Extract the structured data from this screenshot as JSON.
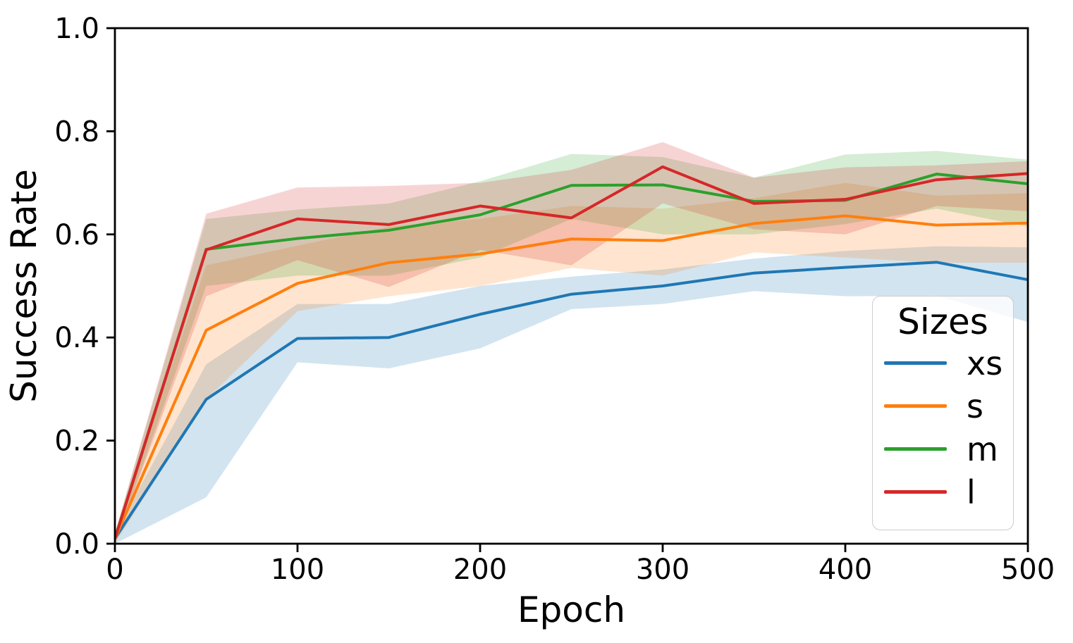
{
  "figure": {
    "background_color": "#ffffff",
    "axis_color": "#000000"
  },
  "legend": {
    "title": "Sizes",
    "position": "lower right",
    "border_color": "#cccccc"
  },
  "chart_data": {
    "type": "line",
    "title": "",
    "xlabel": "Epoch",
    "ylabel": "Success Rate",
    "xlim": [
      0,
      500
    ],
    "ylim": [
      0.0,
      1.0
    ],
    "xtick_labels": [
      "0",
      "100",
      "200",
      "300",
      "400",
      "500"
    ],
    "xtick_values": [
      0,
      100,
      200,
      300,
      400,
      500
    ],
    "ytick_labels": [
      "0.0",
      "0.2",
      "0.4",
      "0.6",
      "0.8",
      "1.0"
    ],
    "ytick_values": [
      0.0,
      0.2,
      0.4,
      0.6,
      0.8,
      1.0
    ],
    "grid": false,
    "legend_title": "Sizes",
    "legend_position": "lower right",
    "band_alpha": 0.2,
    "x": [
      0,
      50,
      100,
      150,
      200,
      250,
      300,
      350,
      400,
      450,
      500
    ],
    "series": [
      {
        "name": "xs",
        "color": "#1f77b4",
        "values": [
          0.01,
          0.28,
          0.398,
          0.4,
          0.445,
          0.484,
          0.5,
          0.525,
          0.536,
          0.546,
          0.512
        ],
        "band_lower": [
          0.0,
          0.09,
          0.352,
          0.34,
          0.379,
          0.455,
          0.465,
          0.49,
          0.48,
          0.481,
          0.43
        ],
        "band_upper": [
          0.02,
          0.348,
          0.465,
          0.465,
          0.5,
          0.518,
          0.532,
          0.553,
          0.568,
          0.577,
          0.575
        ]
      },
      {
        "name": "s",
        "color": "#ff7f0e",
        "values": [
          0.01,
          0.414,
          0.505,
          0.545,
          0.562,
          0.591,
          0.588,
          0.621,
          0.636,
          0.618,
          0.622
        ],
        "band_lower": [
          0.0,
          0.28,
          0.451,
          0.48,
          0.5,
          0.535,
          0.52,
          0.565,
          0.555,
          0.545,
          0.545
        ],
        "band_upper": [
          0.02,
          0.54,
          0.578,
          0.615,
          0.63,
          0.655,
          0.65,
          0.67,
          0.7,
          0.675,
          0.68
        ]
      },
      {
        "name": "m",
        "color": "#2ca02c",
        "values": [
          0.01,
          0.571,
          0.592,
          0.608,
          0.638,
          0.695,
          0.696,
          0.664,
          0.666,
          0.717,
          0.698
        ],
        "band_lower": [
          0.0,
          0.5,
          0.52,
          0.52,
          0.555,
          0.63,
          0.6,
          0.6,
          0.62,
          0.65,
          0.615
        ],
        "band_upper": [
          0.02,
          0.63,
          0.648,
          0.66,
          0.703,
          0.756,
          0.75,
          0.71,
          0.755,
          0.762,
          0.745
        ]
      },
      {
        "name": "l",
        "color": "#d62728",
        "values": [
          0.01,
          0.57,
          0.63,
          0.619,
          0.655,
          0.632,
          0.731,
          0.66,
          0.668,
          0.706,
          0.718
        ],
        "band_lower": [
          0.0,
          0.48,
          0.55,
          0.498,
          0.57,
          0.54,
          0.66,
          0.61,
          0.6,
          0.655,
          0.645
        ],
        "band_upper": [
          0.02,
          0.64,
          0.691,
          0.694,
          0.7,
          0.725,
          0.779,
          0.71,
          0.73,
          0.734,
          0.742
        ]
      }
    ]
  }
}
